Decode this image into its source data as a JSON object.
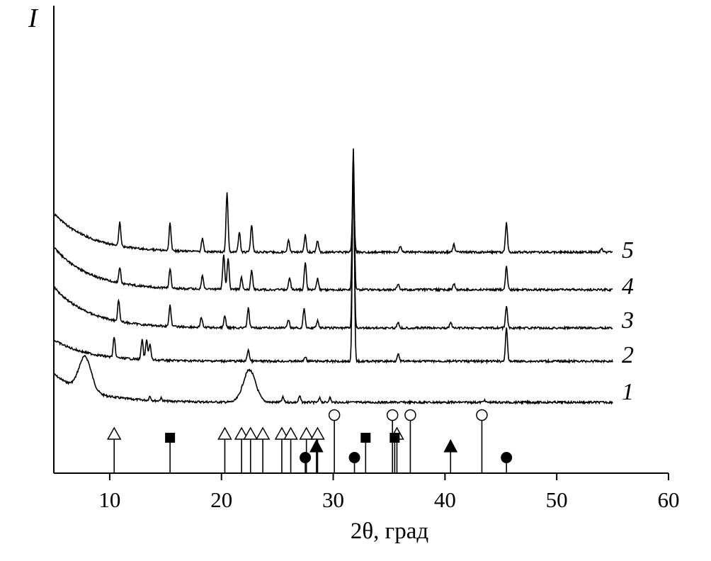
{
  "chart_data": {
    "type": "line",
    "title": "",
    "xlabel": "2θ, град",
    "ylabel": "I",
    "xlim": [
      5,
      60
    ],
    "xticks": [
      10,
      20,
      30,
      40,
      50,
      60
    ],
    "grid": false,
    "series": [
      {
        "name": "1",
        "peaks": [
          [
            7.8,
            1.0
          ],
          [
            13.6,
            0.12
          ],
          [
            14.6,
            0.08
          ],
          [
            22.5,
            0.95
          ],
          [
            25.5,
            0.15
          ],
          [
            27,
            0.18
          ],
          [
            28.8,
            0.12
          ],
          [
            29.7,
            0.14
          ],
          [
            43.5,
            0.06
          ]
        ]
      },
      {
        "name": "2",
        "peaks": [
          [
            10.4,
            0.5
          ],
          [
            12.9,
            0.5
          ],
          [
            13.3,
            0.5
          ],
          [
            13.6,
            0.4
          ],
          [
            22.4,
            0.3
          ],
          [
            27.5,
            0.12
          ],
          [
            31.8,
            5.3
          ],
          [
            35.8,
            0.2
          ],
          [
            45.5,
            0.85
          ]
        ]
      },
      {
        "name": "3",
        "peaks": [
          [
            10.8,
            0.55
          ],
          [
            15.4,
            0.55
          ],
          [
            18.2,
            0.25
          ],
          [
            20.3,
            0.3
          ],
          [
            22.4,
            0.5
          ],
          [
            26.0,
            0.2
          ],
          [
            27.4,
            0.5
          ],
          [
            28.6,
            0.2
          ],
          [
            31.8,
            4.1
          ],
          [
            35.8,
            0.15
          ],
          [
            40.5,
            0.15
          ],
          [
            45.5,
            0.55
          ]
        ]
      },
      {
        "name": "4",
        "peaks": [
          [
            10.9,
            0.4
          ],
          [
            15.4,
            0.5
          ],
          [
            18.3,
            0.35
          ],
          [
            20.2,
            0.9
          ],
          [
            20.6,
            0.8
          ],
          [
            21.8,
            0.3
          ],
          [
            22.7,
            0.5
          ],
          [
            26.1,
            0.3
          ],
          [
            27.5,
            0.7
          ],
          [
            28.6,
            0.3
          ],
          [
            31.8,
            3.6
          ],
          [
            35.8,
            0.15
          ],
          [
            40.8,
            0.15
          ],
          [
            45.5,
            0.6
          ]
        ]
      },
      {
        "name": "5",
        "peaks": [
          [
            10.9,
            0.6
          ],
          [
            15.4,
            0.7
          ],
          [
            18.3,
            0.35
          ],
          [
            20.5,
            1.5
          ],
          [
            21.6,
            0.5
          ],
          [
            22.7,
            0.7
          ],
          [
            26.0,
            0.3
          ],
          [
            27.5,
            0.45
          ],
          [
            28.6,
            0.3
          ],
          [
            31.8,
            1.8
          ],
          [
            36.0,
            0.15
          ],
          [
            40.8,
            0.2
          ],
          [
            45.5,
            0.75
          ],
          [
            54.0,
            0.1
          ]
        ]
      }
    ],
    "reference_phases": [
      {
        "marker": "open-triangle",
        "positions": [
          10.4,
          20.3,
          21.8,
          22.6,
          23.7,
          25.4,
          26.2,
          27.6,
          28.6,
          35.7
        ]
      },
      {
        "marker": "filled-square",
        "positions": [
          15.4,
          32.9,
          35.5
        ]
      },
      {
        "marker": "open-circle",
        "positions": [
          30.1,
          35.3,
          36.9,
          43.3
        ]
      },
      {
        "marker": "filled-triangle",
        "positions": [
          28.5,
          40.5
        ]
      },
      {
        "marker": "filled-circle",
        "positions": [
          27.5,
          31.9,
          45.5
        ]
      }
    ]
  }
}
